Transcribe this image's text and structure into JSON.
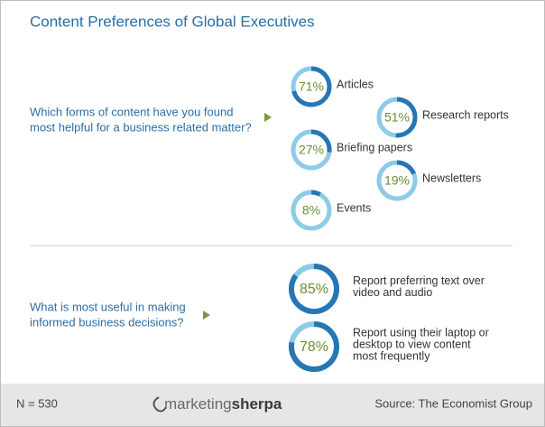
{
  "title": "Content Preferences of Global Executives",
  "sections": [
    {
      "question": [
        "Which forms of content have you found",
        "most helpful for a business related matter?"
      ],
      "items": [
        {
          "value": 71,
          "value_label": "71%",
          "label": [
            "Articles"
          ]
        },
        {
          "value": 51,
          "value_label": "51%",
          "label": [
            "Research reports"
          ]
        },
        {
          "value": 27,
          "value_label": "27%",
          "label": [
            "Briefing papers"
          ]
        },
        {
          "value": 19,
          "value_label": "19%",
          "label": [
            "Newsletters"
          ]
        },
        {
          "value": 8,
          "value_label": "8%",
          "label": [
            "Events"
          ]
        }
      ]
    },
    {
      "question": [
        "What is most useful in making",
        "informed business decisions?"
      ],
      "items": [
        {
          "value": 85,
          "value_label": "85%",
          "label": [
            "Report preferring text over",
            "video and audio"
          ]
        },
        {
          "value": 78,
          "value_label": "78%",
          "label": [
            "Report using their laptop or",
            "desktop to view content",
            "most frequently"
          ]
        }
      ]
    }
  ],
  "footer": {
    "n": "N = 530",
    "logo": [
      "marketing",
      "sherpa"
    ],
    "source": "Source: The Economist Group"
  }
}
